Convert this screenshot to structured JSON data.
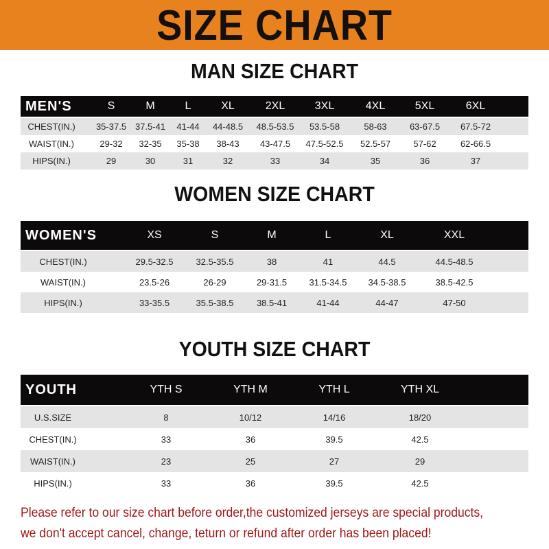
{
  "banner": {
    "title": "SIZE CHART",
    "color": "#e8821e"
  },
  "men": {
    "title": "MAN SIZE CHART",
    "header": [
      "MEN'S",
      "S",
      "M",
      "L",
      "XL",
      "2XL",
      "3XL",
      "4XL",
      "5XL",
      "6XL"
    ],
    "rows": [
      [
        "CHEST(IN.)",
        "35-37.5",
        "37.5-41",
        "41-44",
        "44-48.5",
        "48.5-53.5",
        "53.5-58",
        "58-63",
        "63-67.5",
        "67.5-72"
      ],
      [
        "WAIST(IN.)",
        "29-32",
        "32-35",
        "35-38",
        "38-43",
        "43-47.5",
        "47.5-52.5",
        "52.5-57",
        "57-62",
        "62-66.5"
      ],
      [
        "HIPS(IN.)",
        "29",
        "30",
        "31",
        "32",
        "33",
        "34",
        "35",
        "36",
        "37"
      ]
    ]
  },
  "women": {
    "title": "WOMEN SIZE CHART",
    "header": [
      "WOMEN'S",
      "XS",
      "S",
      "M",
      "L",
      "XL",
      "XXL"
    ],
    "rows": [
      [
        "CHEST(IN.)",
        "29.5-32.5",
        "32.5-35.5",
        "38",
        "41",
        "44.5",
        "44.5-48.5"
      ],
      [
        "WAIST(IN.)",
        "23.5-26",
        "26-29",
        "29-31.5",
        "31.5-34.5",
        "34.5-38.5",
        "38.5-42.5"
      ],
      [
        "HIPS(IN.)",
        "33-35.5",
        "35.5-38.5",
        "38.5-41",
        "41-44",
        "44-47",
        "47-50"
      ]
    ]
  },
  "youth": {
    "title": "YOUTH SIZE CHART",
    "header": [
      "YOUTH",
      "YTH S",
      "YTH M",
      "YTH L",
      "YTH XL"
    ],
    "rows": [
      [
        "U.S.SIZE",
        "8",
        "10/12",
        "14/16",
        "18/20"
      ],
      [
        "CHEST(IN.)",
        "33",
        "36",
        "39.5",
        "42.5"
      ],
      [
        "WAIST(IN.)",
        "23",
        "25",
        "27",
        "29"
      ],
      [
        "HIPS(IN.)",
        "33",
        "36",
        "39.5",
        "42.5"
      ]
    ]
  },
  "note": {
    "line1": "Please refer to our size chart before order,the customized jerseys are special products,",
    "line2": "we don't accept cancel, change, teturn or refund after order has been placed!",
    "color": "#a01818"
  }
}
